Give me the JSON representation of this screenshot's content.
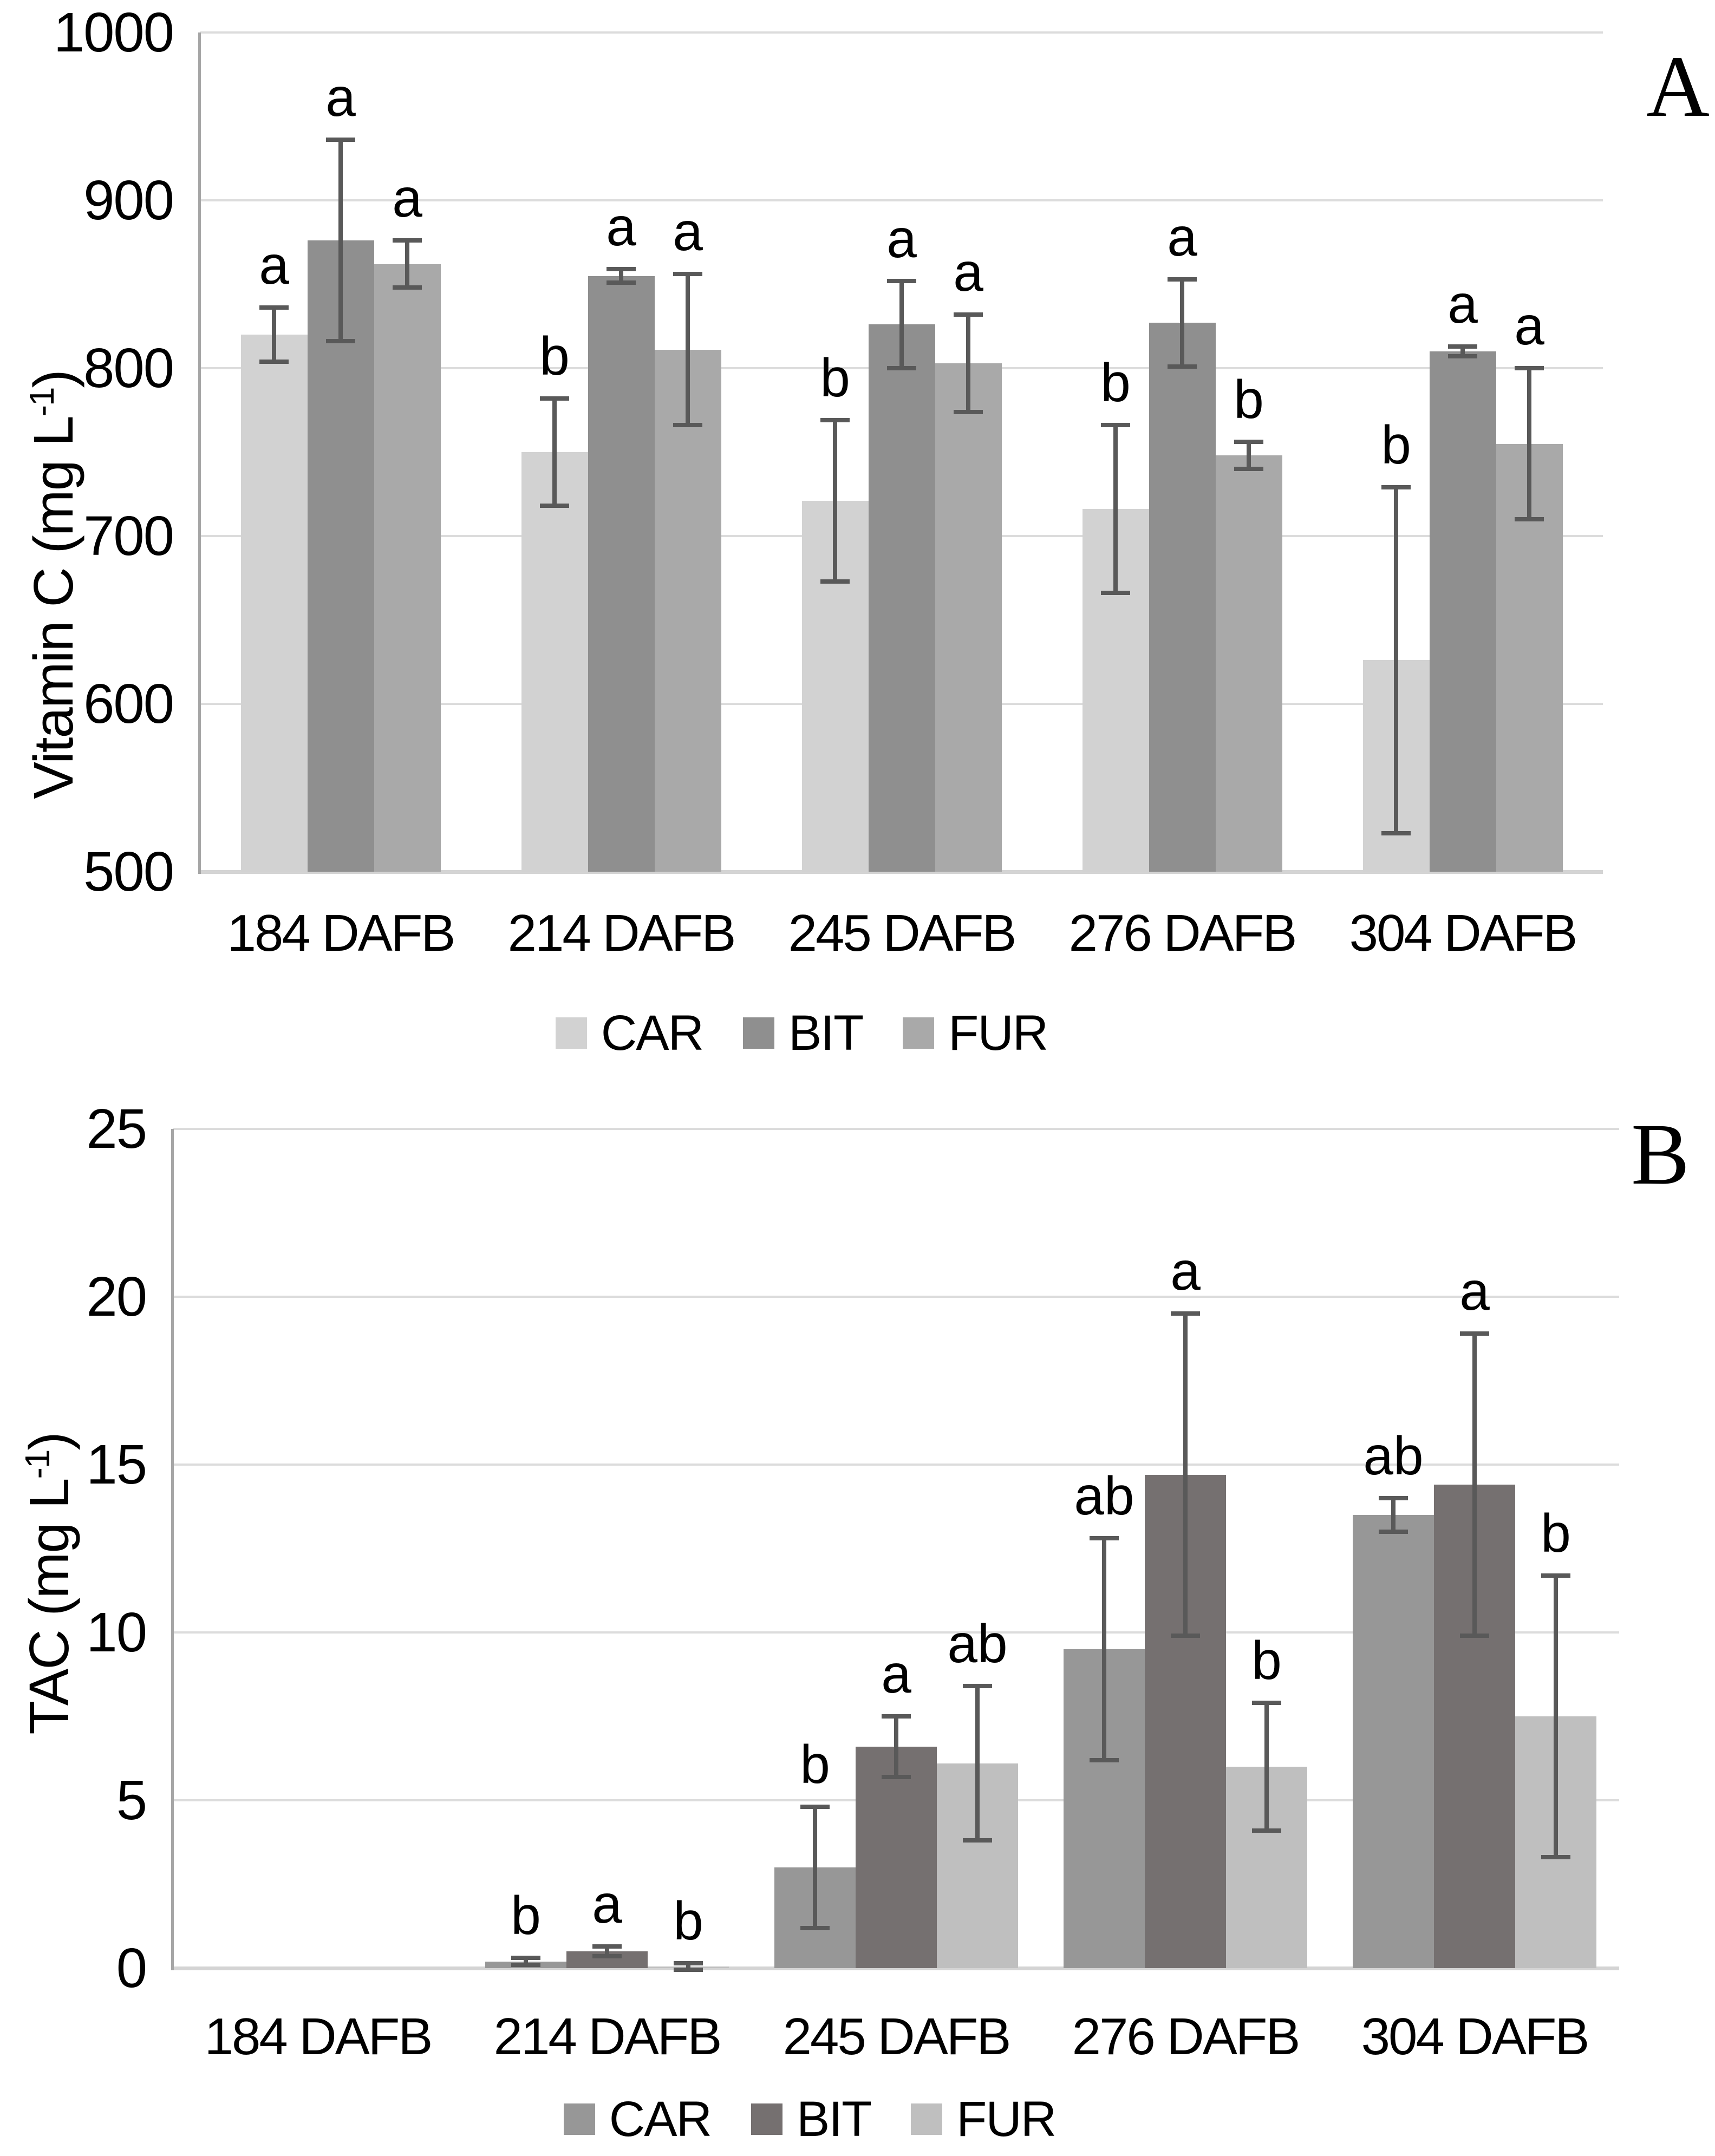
{
  "style": {
    "background": "#ffffff",
    "grid_color": "#dcdcdc",
    "baseline_color": "#d4d4d4",
    "axis_line_color": "#a6a6a6",
    "error_bar_color": "#595959",
    "text_color": "#000000"
  },
  "chart_data": [
    {
      "panel_label": "A",
      "type": "bar",
      "title": "",
      "xlabel": "",
      "ylabel": "Vitamin C (mg L-1)",
      "ylabel_parts": {
        "pre": "Vitamin C (mg L",
        "sup": "-1",
        "post": ")"
      },
      "categories": [
        "184 DAFB",
        "214 DAFB",
        "245 DAFB",
        "276 DAFB",
        "304 DAFB"
      ],
      "ylim": [
        500,
        1000
      ],
      "ytick_step": 100,
      "ytick_labels": [
        "1000",
        "900",
        "800",
        "700",
        "600",
        "500"
      ],
      "grid": true,
      "legend_position": "bottom",
      "series": [
        {
          "name": "CAR",
          "color": "#d2d2d2",
          "values": [
            820,
            750,
            721,
            716,
            626
          ],
          "errors": [
            16,
            32,
            48,
            50,
            103
          ],
          "letters": [
            "a",
            "b",
            "b",
            "b",
            "b"
          ]
        },
        {
          "name": "BIT",
          "color": "#8f8f8f",
          "values": [
            876,
            855,
            826,
            827,
            810
          ],
          "errors": [
            60,
            4,
            26,
            26,
            3
          ],
          "letters": [
            "a",
            "a",
            "a",
            "a",
            "a"
          ]
        },
        {
          "name": "FUR",
          "color": "#a9a9a9",
          "values": [
            862,
            811,
            803,
            748,
            755
          ],
          "errors": [
            14,
            45,
            29,
            8,
            45
          ],
          "letters": [
            "a",
            "a",
            "a",
            "b",
            "a"
          ]
        }
      ]
    },
    {
      "panel_label": "B",
      "type": "bar",
      "title": "",
      "xlabel": "",
      "ylabel": "TAC (mg L-1)",
      "ylabel_parts": {
        "pre": "TAC (mg L",
        "sup": "-1",
        "post": ")"
      },
      "categories": [
        "184 DAFB",
        "214 DAFB",
        "245 DAFB",
        "276 DAFB",
        "304 DAFB"
      ],
      "ylim": [
        0,
        25
      ],
      "ytick_step": 5,
      "ytick_labels": [
        "25",
        "20",
        "15",
        "10",
        "5",
        "0"
      ],
      "grid": true,
      "legend_position": "bottom",
      "series": [
        {
          "name": "CAR",
          "color": "#979797",
          "values": [
            0,
            0.2,
            3.0,
            9.5,
            13.5
          ],
          "errors": [
            0,
            0.1,
            1.8,
            3.3,
            0.5
          ],
          "letters": [
            "",
            "b",
            "b",
            "ab",
            "ab"
          ]
        },
        {
          "name": "BIT",
          "color": "#757070",
          "values": [
            0,
            0.5,
            6.6,
            14.7,
            14.4
          ],
          "errors": [
            0,
            0.15,
            0.9,
            4.8,
            4.5
          ],
          "letters": [
            "",
            "a",
            "a",
            "a",
            "a"
          ]
        },
        {
          "name": "FUR",
          "color": "#bfbfbf",
          "values": [
            0,
            0.05,
            6.1,
            6.0,
            7.5
          ],
          "errors": [
            0,
            0.1,
            2.3,
            1.9,
            4.2
          ],
          "letters": [
            "",
            "b",
            "ab",
            "b",
            "b"
          ]
        }
      ]
    }
  ]
}
